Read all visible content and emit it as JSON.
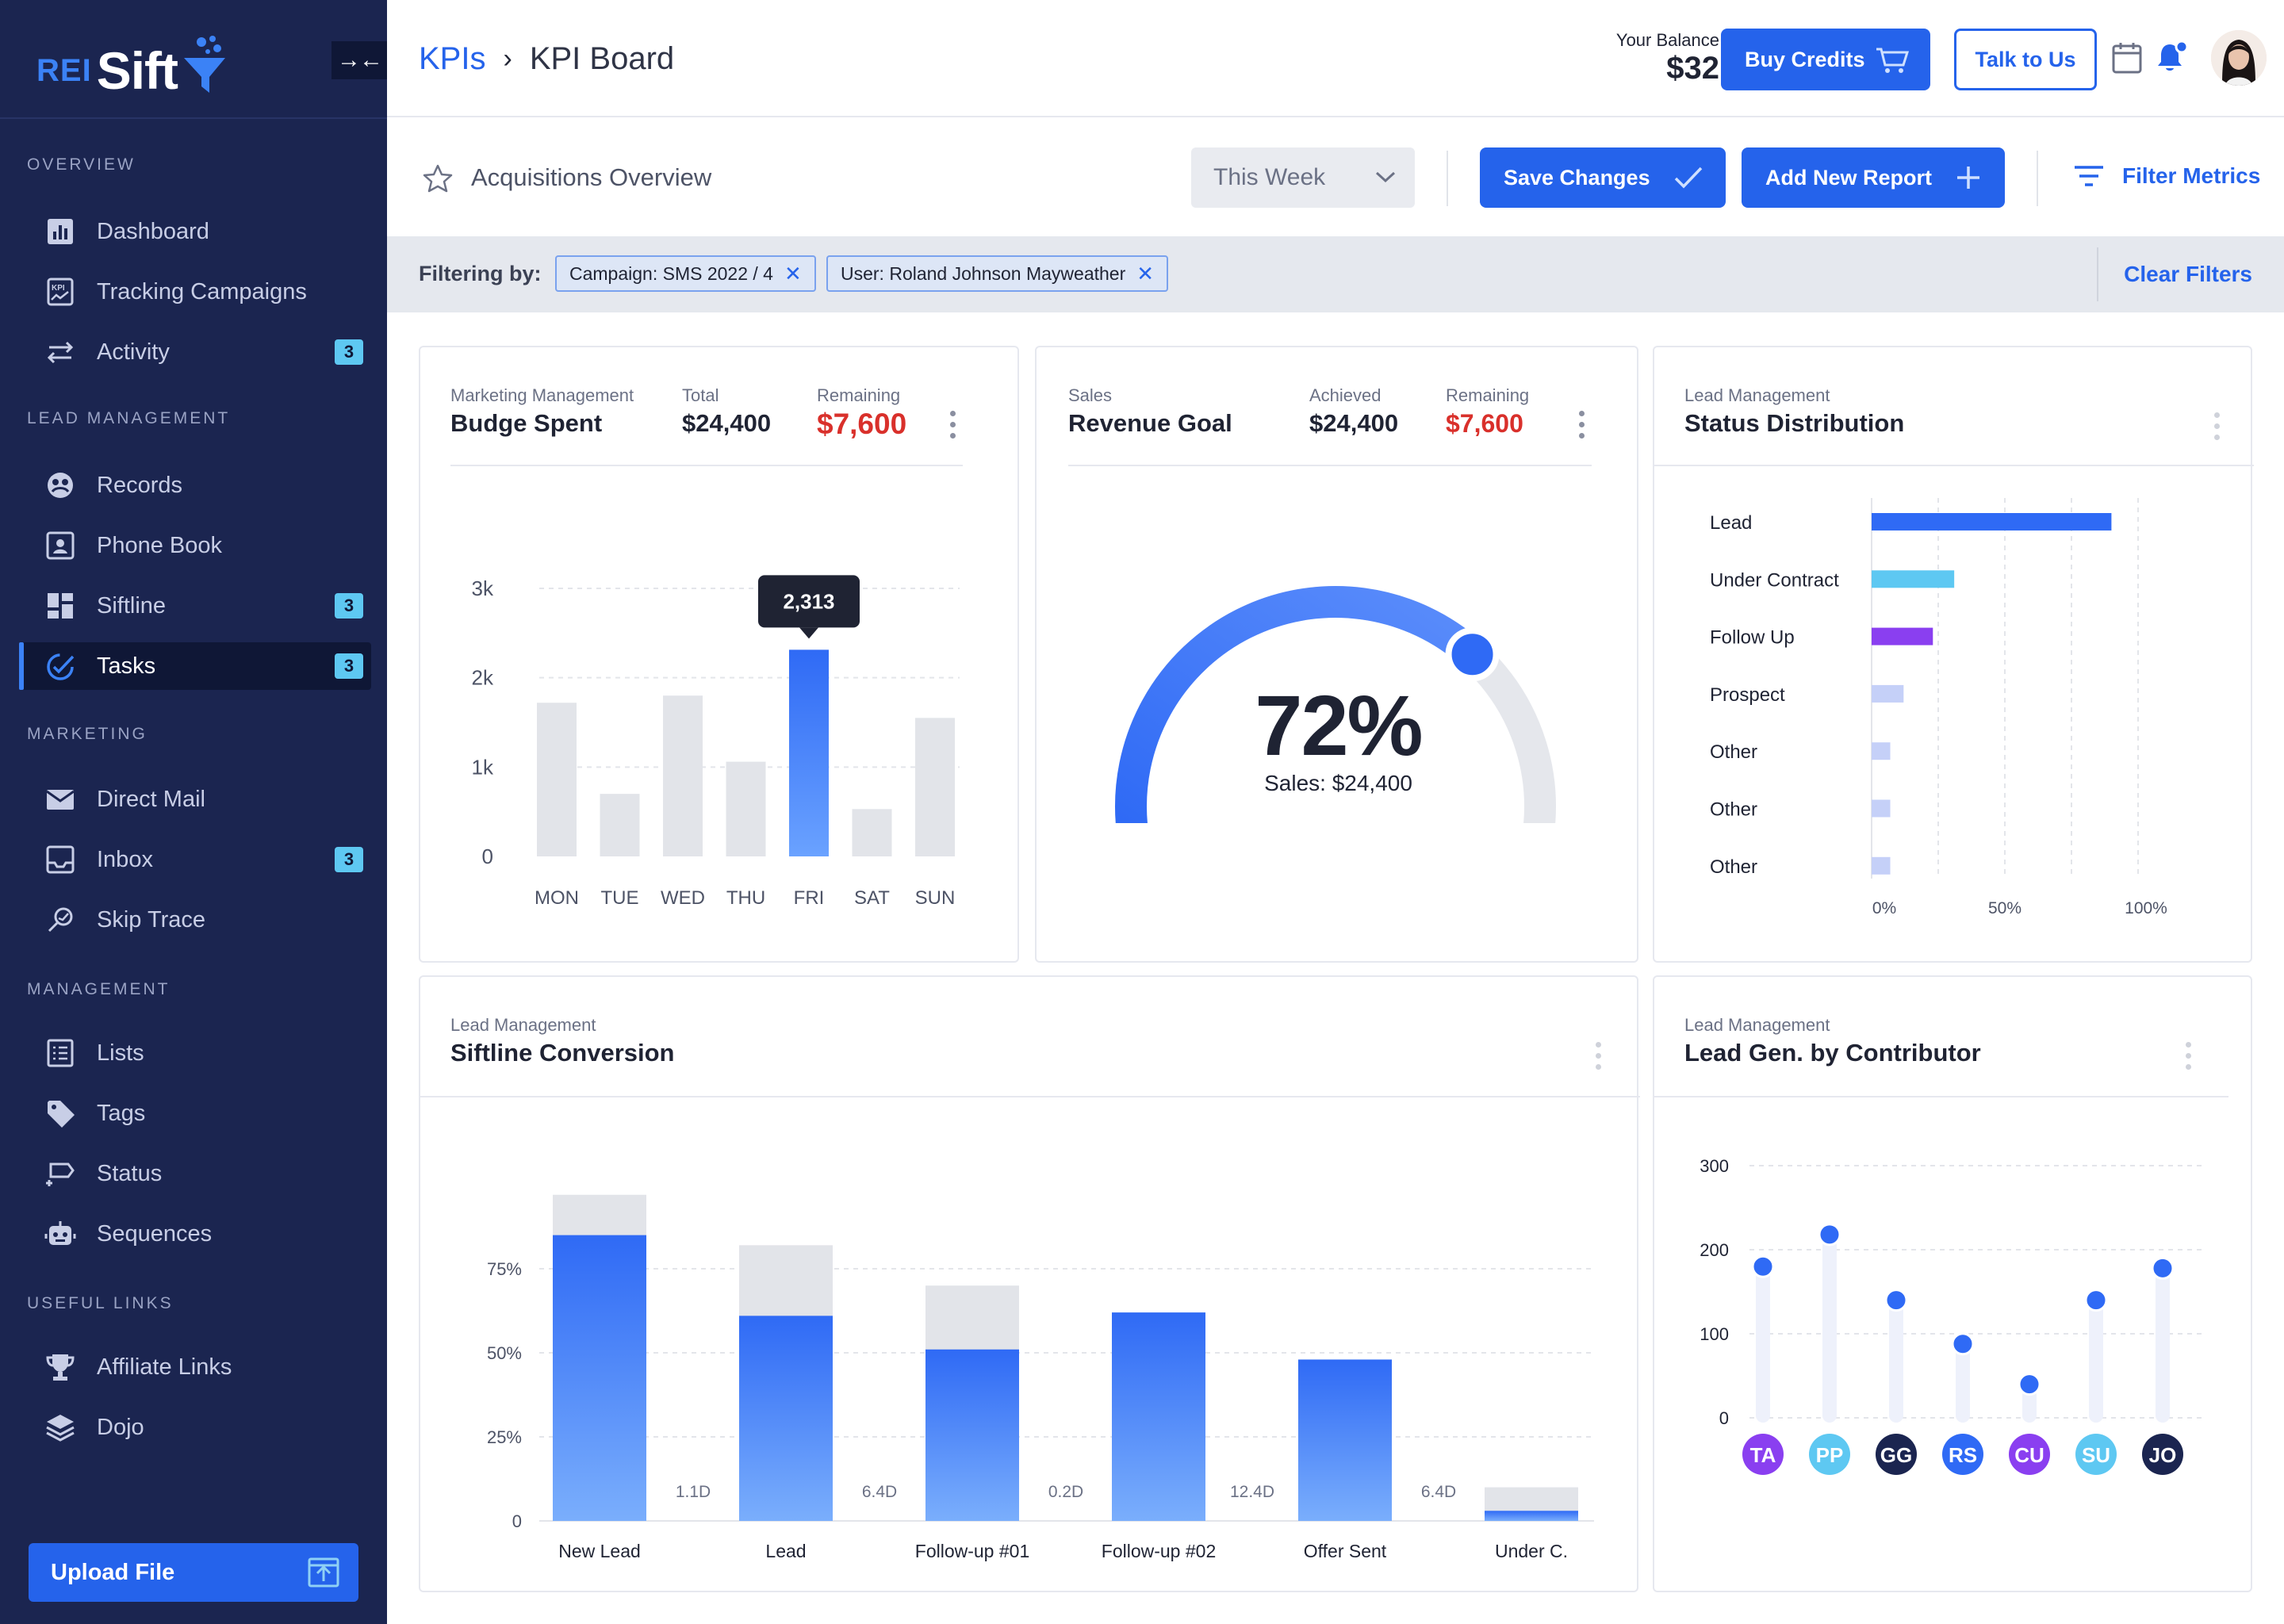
{
  "brand": {
    "prefix": "REI",
    "name": "Sift"
  },
  "sidebar": {
    "sections": [
      {
        "label": "OVERVIEW",
        "items": [
          {
            "label": "Dashboard",
            "icon": "bar-chart-icon"
          },
          {
            "label": "Tracking Campaigns",
            "icon": "kpi-icon"
          },
          {
            "label": "Activity",
            "icon": "swap-arrows-icon",
            "badge": "3"
          }
        ]
      },
      {
        "label": "LEAD MANAGEMENT",
        "items": [
          {
            "label": "Records",
            "icon": "records-icon"
          },
          {
            "label": "Phone Book",
            "icon": "contact-card-icon"
          },
          {
            "label": "Siftline",
            "icon": "grid-icon",
            "badge": "3"
          },
          {
            "label": "Tasks",
            "icon": "task-check-icon",
            "badge": "3",
            "active": true
          }
        ]
      },
      {
        "label": "MARKETING",
        "items": [
          {
            "label": "Direct Mail",
            "icon": "mail-icon"
          },
          {
            "label": "Inbox",
            "icon": "inbox-icon",
            "badge": "3"
          },
          {
            "label": "Skip Trace",
            "icon": "skip-trace-icon"
          }
        ]
      },
      {
        "label": "MANAGEMENT",
        "items": [
          {
            "label": "Lists",
            "icon": "list-icon"
          },
          {
            "label": "Tags",
            "icon": "tag-icon"
          },
          {
            "label": "Status",
            "icon": "status-icon"
          },
          {
            "label": "Sequences",
            "icon": "robot-icon"
          }
        ]
      },
      {
        "label": "USEFUL LINKS",
        "items": [
          {
            "label": "Affiliate Links",
            "icon": "trophy-icon"
          },
          {
            "label": "Dojo",
            "icon": "layers-icon"
          }
        ]
      }
    ],
    "upload_label": "Upload File"
  },
  "header": {
    "crumb_root": "KPIs",
    "crumb_current": "KPI Board",
    "balance_label": "Your Balance",
    "balance_amount": "$32",
    "buy_credits": "Buy Credits",
    "talk_to_us": "Talk to Us"
  },
  "subheader": {
    "title": "Acquisitions Overview",
    "period": "This Week",
    "save_changes": "Save Changes",
    "add_report": "Add New Report",
    "filter_metrics": "Filter Metrics"
  },
  "filters": {
    "label": "Filtering by:",
    "chips": [
      "Campaign: SMS 2022 / 4",
      "User: Roland Johnson Mayweather"
    ],
    "clear": "Clear Filters"
  },
  "budget_card": {
    "category": "Marketing Management",
    "title": "Budge Spent",
    "total_label": "Total",
    "total_value": "$24,400",
    "remaining_label": "Remaining",
    "remaining_value": "$7,600"
  },
  "revenue_card": {
    "category": "Sales",
    "title": "Revenue Goal",
    "achieved_label": "Achieved",
    "achieved_value": "$24,400",
    "remaining_label": "Remaining",
    "remaining_value": "$7,600",
    "percent": "72%",
    "sub": "Sales: $24,400"
  },
  "status_card": {
    "category": "Lead Management",
    "title": "Status Distribution"
  },
  "siftline_card": {
    "category": "Lead Management",
    "title": "Siftline Conversion"
  },
  "contrib_card": {
    "category": "Lead Management",
    "title": "Lead Gen. by Contributor"
  },
  "colors": {
    "accent": "#2563eb",
    "sidebar": "#1b2550",
    "remaining_red": "#d9302b"
  },
  "chart_data": [
    {
      "type": "bar",
      "categories": [
        "MON",
        "TUE",
        "WED",
        "THU",
        "FRI",
        "SAT",
        "SUN"
      ],
      "values": [
        1720,
        700,
        1800,
        1060,
        2313,
        530,
        1550
      ],
      "highlight_index": 4,
      "tooltip": "2,313",
      "yticks": [
        "0",
        "1k",
        "2k",
        "3k"
      ],
      "ylim": [
        0,
        3000
      ]
    },
    {
      "type": "gauge",
      "value": 72,
      "max": 100
    },
    {
      "type": "bar",
      "orientation": "horizontal",
      "categories": [
        "Lead",
        "Under Contract",
        "Follow Up",
        "Prospect",
        "Other",
        "Other",
        "Other"
      ],
      "values": [
        90,
        31,
        23,
        12,
        7,
        7,
        7
      ],
      "bar_colors": [
        "#2f6af5",
        "#5ec8f2",
        "#8a3ff0",
        "#c5d0f8",
        "#c5d0f8",
        "#c5d0f8",
        "#c5d0f8"
      ],
      "xticks": [
        "0%",
        "50%",
        "100%"
      ],
      "xlim": [
        0,
        100
      ]
    },
    {
      "type": "bar",
      "stacked": true,
      "categories": [
        "New Lead",
        "Lead",
        "Follow-up #01",
        "Follow-up #02",
        "Offer Sent",
        "Under C."
      ],
      "converted": [
        85,
        61,
        51,
        62,
        48,
        3
      ],
      "total": [
        97,
        82,
        70,
        58,
        44,
        10
      ],
      "durations": [
        "1.1D",
        "6.4D",
        "0.2D",
        "12.4D",
        "6.4D"
      ],
      "yticks": [
        "0",
        "25%",
        "50%",
        "75%"
      ]
    },
    {
      "type": "scatter",
      "categories": [
        "TA",
        "PP",
        "GG",
        "RS",
        "CU",
        "SU",
        "JO"
      ],
      "values": [
        180,
        218,
        140,
        88,
        40,
        140,
        178
      ],
      "avatar_colors": [
        "#8a3ff0",
        "#5ec8f2",
        "#1b2550",
        "#2f6af5",
        "#8a3ff0",
        "#5ec8f2",
        "#1b2550"
      ],
      "yticks": [
        "0",
        "100",
        "200",
        "300"
      ],
      "ylim": [
        0,
        300
      ]
    }
  ]
}
